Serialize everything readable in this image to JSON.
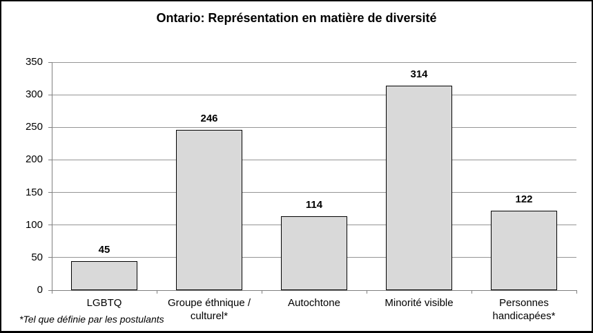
{
  "title": "Ontario: Représentation en matière de diversité",
  "footnote": "*Tel que définie par les postulants",
  "chart_data": {
    "type": "bar",
    "title": "Ontario: Représentation en matière de diversité",
    "categories": [
      "LGBTQ",
      "Groupe éthnique / culturel*",
      "Autochtone",
      "Minorité visible",
      "Personnes handicapées*"
    ],
    "values": [
      45,
      246,
      114,
      314,
      122
    ],
    "xlabel": "",
    "ylabel": "",
    "ylim": [
      0,
      350
    ],
    "ytick_step": 50,
    "ytick_labels": [
      "0",
      "50",
      "100",
      "150",
      "200",
      "250",
      "300",
      "350"
    ],
    "grid": true,
    "legend": false,
    "value_labels_shown": true,
    "annotation": "*Tel que définie par les postulants",
    "colors": {
      "bar_fill": "#d9d9d9",
      "bar_border": "#000000",
      "gridline": "#949494",
      "axis": "#7f7f7f",
      "text": "#000000",
      "background": "#ffffff"
    }
  }
}
